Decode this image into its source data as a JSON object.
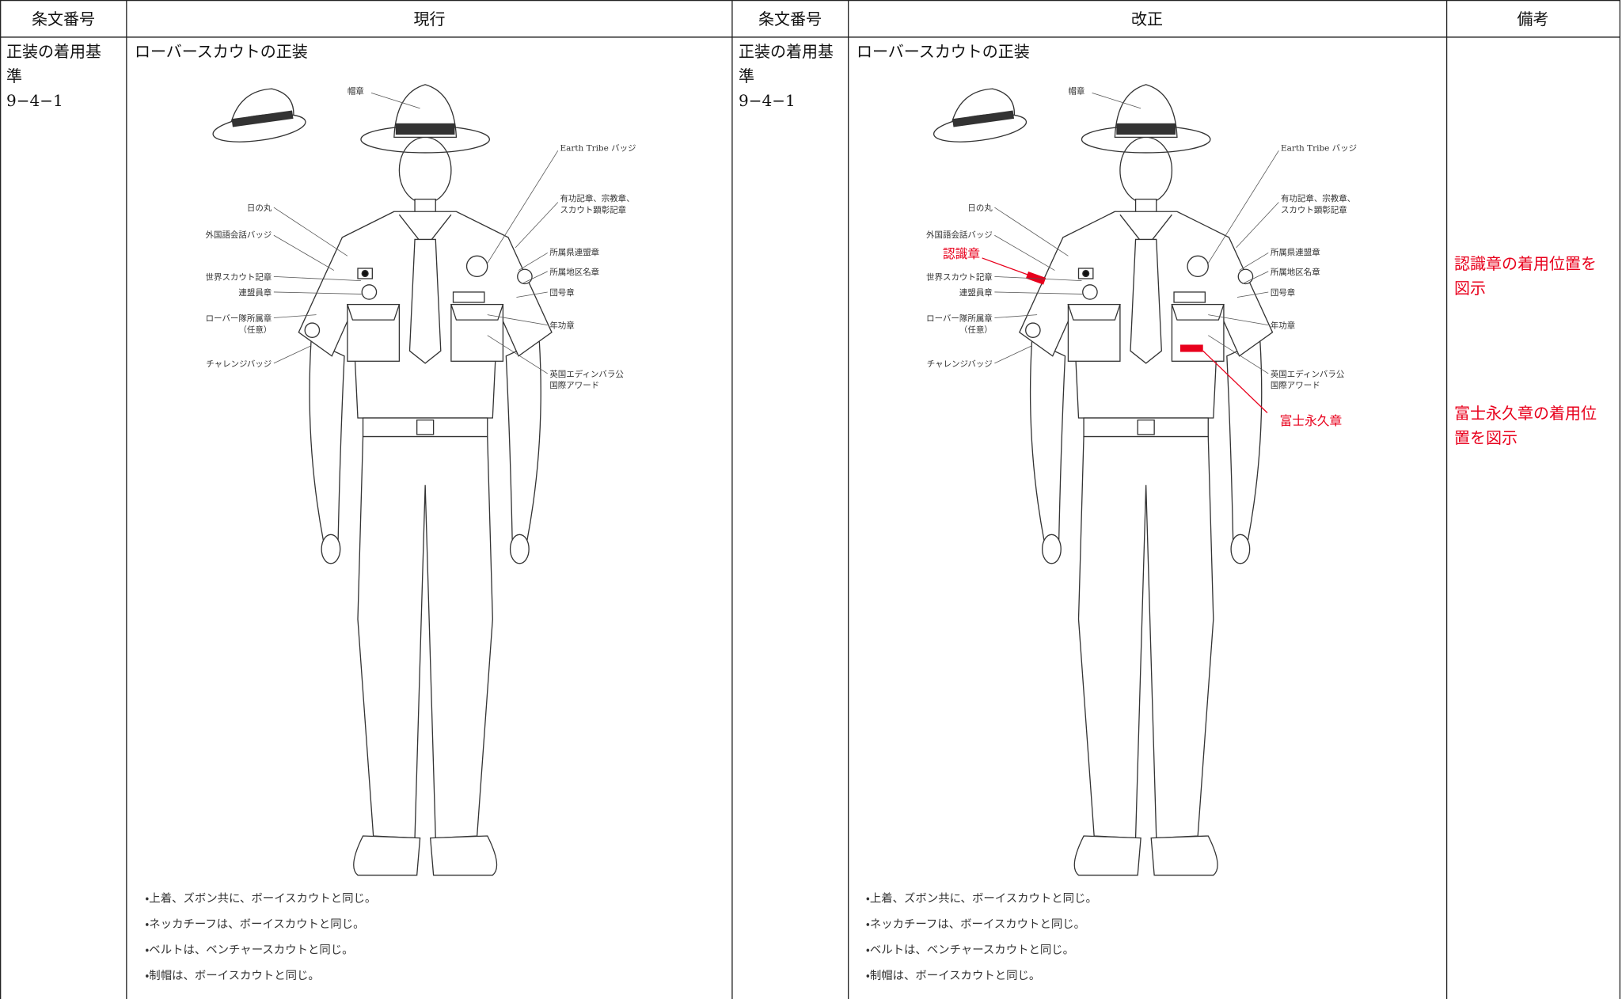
{
  "table": {
    "headers": [
      "条文番号",
      "現行",
      "条文番号",
      "改正",
      "備考"
    ]
  },
  "current": {
    "article": "正装の着用基準",
    "number": "9−4−1",
    "title": "ローバースカウトの正装",
    "labels": [
      "帽章",
      "Earth Tribe バッジ",
      [
        "有功記章、宗教章、",
        "スカウト顕彰記章"
      ],
      "日の丸",
      "外国語会話バッジ",
      "世界スカウト記章",
      "連盟員章",
      [
        "ローバー隊所属章",
        "（任意）"
      ],
      "チャレンジバッジ",
      "所属県連盟章",
      "所属地区名章",
      "団号章",
      "年功章",
      [
        "英国エディンバラ公",
        "国際アワード"
      ]
    ],
    "notes": [
      "・上着、ズボン共に、ボーイスカウトと同じ。",
      "・ネッカチーフは、ボーイスカウトと同じ。",
      "・ベルトは、ベンチャースカウトと同じ。",
      "・制帽は、ボーイスカウトと同じ。"
    ]
  },
  "revised": {
    "article": "正装の着用基準",
    "number": "9−4−1",
    "title": "ローバースカウトの正装",
    "labels": [
      "帽章",
      "Earth Tribe バッジ",
      [
        "有功記章、宗教章、",
        "スカウト顕彰記章"
      ],
      "日の丸",
      "外国語会話バッジ",
      "世界スカウト記章",
      "連盟員章",
      [
        "ローバー隊所属章",
        "（任意）"
      ],
      "チャレンジバッジ",
      "所属県連盟章",
      "所属地区名章",
      "団号章",
      "年功章",
      [
        "英国エディンバラ公",
        "国際アワード"
      ]
    ],
    "added_labels": [
      "認識章",
      "富士永久章"
    ],
    "notes": [
      "・上着、ズボン共に、ボーイスカウトと同じ。",
      "・ネッカチーフは、ボーイスカウトと同じ。",
      "・ベルトは、ベンチャースカウトと同じ。",
      "・制帽は、ボーイスカウトと同じ。"
    ]
  },
  "remarks": [
    "認識章の着用位置を図示",
    "富士永久章の着用位置を図示"
  ]
}
